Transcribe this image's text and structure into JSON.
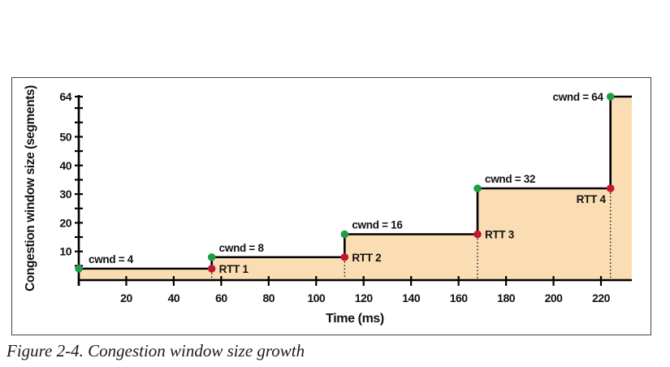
{
  "figure": {
    "caption": "Figure 2-4. Congestion window size growth"
  },
  "chart_data": {
    "type": "area",
    "subtype": "step-function",
    "title": "",
    "xlabel": "Time (ms)",
    "ylabel": "Congestion window size (segments)",
    "xlim": [
      0,
      233
    ],
    "ylim": [
      0,
      64
    ],
    "grid": false,
    "legend": "none",
    "x_ticks": [
      {
        "t": 0,
        "label": ""
      },
      {
        "t": 20,
        "label": "20"
      },
      {
        "t": 40,
        "label": "40"
      },
      {
        "t": 60,
        "label": "60"
      },
      {
        "t": 80,
        "label": "80"
      },
      {
        "t": 100,
        "label": "100"
      },
      {
        "t": 120,
        "label": "120"
      },
      {
        "t": 140,
        "label": "140"
      },
      {
        "t": 160,
        "label": "160"
      },
      {
        "t": 180,
        "label": "180"
      },
      {
        "t": 200,
        "label": "200"
      },
      {
        "t": 220,
        "label": "220"
      }
    ],
    "y_ticks": [
      {
        "v": 5,
        "label": ""
      },
      {
        "v": 10,
        "label": "10"
      },
      {
        "v": 15,
        "label": ""
      },
      {
        "v": 20,
        "label": "20"
      },
      {
        "v": 25,
        "label": ""
      },
      {
        "v": 30,
        "label": "30"
      },
      {
        "v": 35,
        "label": ""
      },
      {
        "v": 40,
        "label": "40"
      },
      {
        "v": 45,
        "label": ""
      },
      {
        "v": 50,
        "label": "50"
      },
      {
        "v": 55,
        "label": ""
      },
      {
        "v": 60,
        "label": ""
      },
      {
        "v": 64,
        "label": "64"
      }
    ],
    "steps": [
      {
        "time": 0,
        "cwnd": 4,
        "cwnd_label": "cwnd = 4"
      },
      {
        "time": 56,
        "cwnd": 8,
        "cwnd_label": "cwnd = 8",
        "rtt_label": "RTT 1"
      },
      {
        "time": 112,
        "cwnd": 16,
        "cwnd_label": "cwnd = 16",
        "rtt_label": "RTT 2"
      },
      {
        "time": 168,
        "cwnd": 32,
        "cwnd_label": "cwnd = 32",
        "rtt_label": "RTT 3"
      },
      {
        "time": 224,
        "cwnd": 64,
        "cwnd_label": "cwnd = 64",
        "rtt_label": "RTT 4"
      }
    ],
    "colors": {
      "area_fill": "#FBDDB4",
      "step_line": "#000000",
      "axis": "#000000",
      "start_dot_green": "#1F9D48",
      "rtt_dot_red": "#C2182E",
      "dotted_line": "#222222",
      "text": "#111111",
      "frame_border": "#414141"
    }
  }
}
